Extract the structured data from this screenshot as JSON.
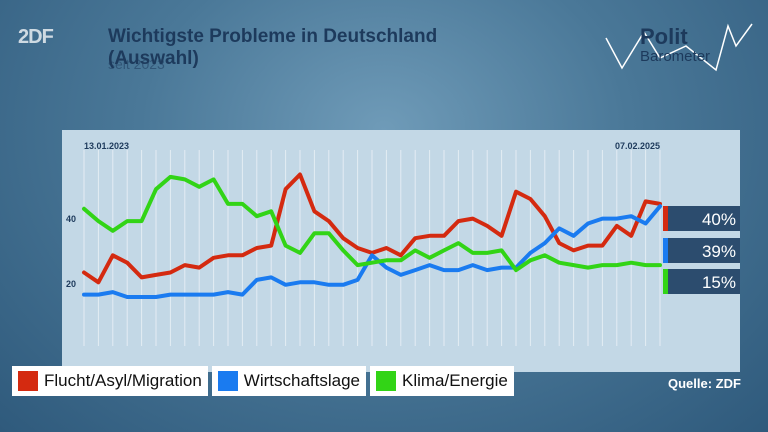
{
  "header": {
    "logo": "2DF",
    "title_line1": "Wichtigste Probleme in Deutschland",
    "title_line2": "(Auswahl)",
    "subtitle": "seit 2023"
  },
  "brand": {
    "polit": "Polit",
    "barometer": "Barometer"
  },
  "source": "Quelle: ZDF",
  "chart_data": {
    "type": "line",
    "date_start": "13.01.2023",
    "date_end": "07.02.2025",
    "yticks": [
      "40",
      "20"
    ],
    "ylim": [
      -18,
      62
    ],
    "series": [
      {
        "name": "Flucht/Asyl/Migration",
        "color": "#d42a10",
        "end_label": "40%",
        "values": [
          12,
          8,
          19,
          16,
          10,
          11,
          12,
          15,
          14,
          18,
          19,
          19,
          22,
          23,
          46,
          52,
          37,
          33,
          26,
          22,
          20,
          22,
          19,
          26,
          27,
          27,
          33,
          34,
          31,
          27,
          45,
          42,
          35,
          24,
          21,
          23,
          23,
          31,
          27,
          41,
          40
        ]
      },
      {
        "name": "Wirtschaftslage",
        "color": "#1a7bf0",
        "end_label": "39%",
        "values": [
          3,
          3,
          4,
          2,
          2,
          2,
          3,
          3,
          3,
          3,
          4,
          3,
          9,
          10,
          7,
          8,
          8,
          7,
          7,
          9,
          19,
          14,
          11,
          13,
          15,
          13,
          13,
          15,
          13,
          14,
          14,
          20,
          24,
          30,
          27,
          32,
          34,
          34,
          35,
          32,
          39
        ]
      },
      {
        "name": "Klima/Energie",
        "color": "#32d416",
        "end_label": "15%",
        "values": [
          38,
          33,
          29,
          33,
          33,
          46,
          51,
          50,
          47,
          50,
          40,
          40,
          35,
          37,
          23,
          20,
          28,
          28,
          21,
          15,
          16,
          17,
          17,
          21,
          18,
          21,
          24,
          20,
          20,
          21,
          13,
          17,
          19,
          16,
          15,
          14,
          15,
          15,
          16,
          15,
          15
        ]
      }
    ]
  }
}
